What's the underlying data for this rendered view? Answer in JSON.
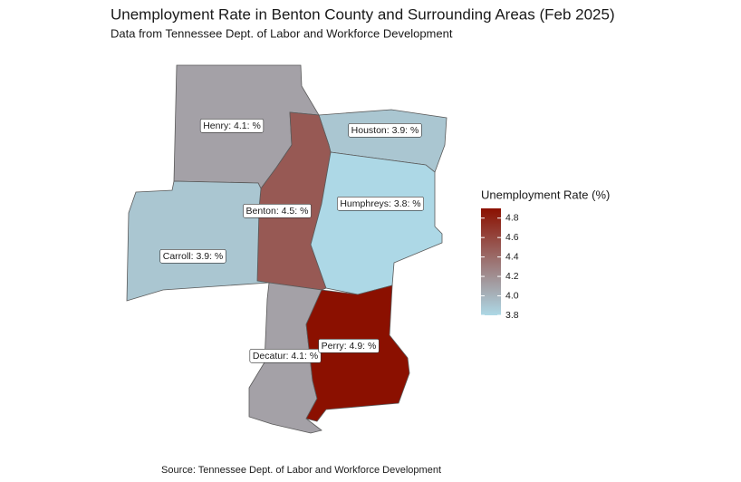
{
  "title": "Unemployment Rate in Benton County and Surrounding Areas (Feb 2025)",
  "subtitle": "Data from Tennessee Dept. of Labor and Workforce Development",
  "caption": "Source: Tennessee Dept. of Labor and Workforce Development",
  "counties": [
    {
      "name": "Henry",
      "value": 4.1,
      "label": "Henry: 4.1: %"
    },
    {
      "name": "Houston",
      "value": 3.9,
      "label": "Houston: 3.9: %"
    },
    {
      "name": "Benton",
      "value": 4.5,
      "label": "Benton: 4.5: %"
    },
    {
      "name": "Humphreys",
      "value": 3.8,
      "label": "Humphreys: 3.8: %"
    },
    {
      "name": "Carroll",
      "value": 3.9,
      "label": "Carroll: 3.9: %"
    },
    {
      "name": "Decatur",
      "value": 4.1,
      "label": "Decatur: 4.1: %"
    },
    {
      "name": "Perry",
      "value": 4.9,
      "label": "Perry: 4.9: %"
    }
  ],
  "legend": {
    "title": "Unemployment Rate (%)",
    "lim": [
      3.8,
      4.9
    ],
    "ticks": [
      3.8,
      {
        "value": 4,
        "label": "4.0"
      },
      4.2,
      4.4,
      4.6,
      4.8
    ],
    "low_color": "#add8e6",
    "high_color": "#8b1000"
  }
}
